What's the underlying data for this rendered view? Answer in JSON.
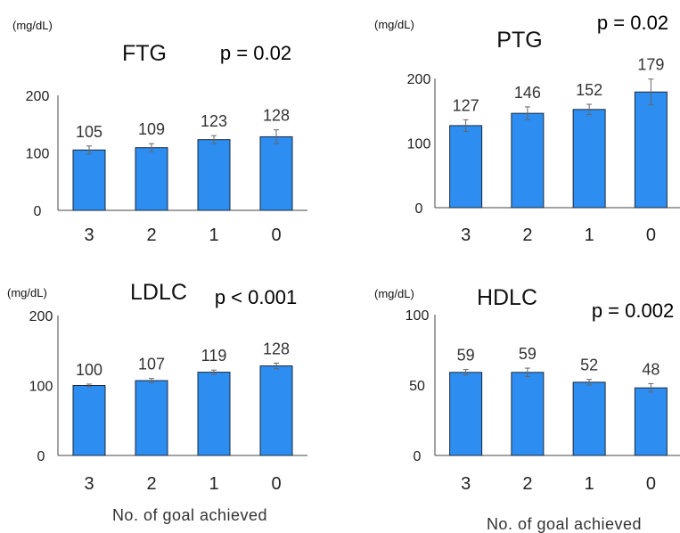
{
  "colors": {
    "bar": "#2e8df0",
    "axis": "#444444",
    "error": "#666666"
  },
  "chart_data": [
    {
      "type": "bar",
      "title": "FTG",
      "unit": "(mg/dL)",
      "p_value": "p = 0.02",
      "categories": [
        "3",
        "2",
        "1",
        "0"
      ],
      "values": [
        105,
        109,
        123,
        128
      ],
      "labels": [
        "105",
        "109",
        "123",
        "128"
      ],
      "errors": [
        7,
        7,
        7,
        12
      ],
      "ylim": [
        0,
        200
      ],
      "yticks": [
        0,
        100,
        200
      ],
      "xlabel": ""
    },
    {
      "type": "bar",
      "title": "PTG",
      "unit": "(mg/dL)",
      "p_value": "p = 0.02",
      "categories": [
        "3",
        "2",
        "1",
        "0"
      ],
      "values": [
        127,
        146,
        152,
        179
      ],
      "labels": [
        "127",
        "146",
        "152",
        "179"
      ],
      "errors": [
        9,
        10,
        8,
        20
      ],
      "ylim": [
        0,
        200
      ],
      "yticks": [
        0,
        100,
        200
      ],
      "xlabel": ""
    },
    {
      "type": "bar",
      "title": "LDLC",
      "unit": "(mg/dL)",
      "p_value": "p < 0.001",
      "categories": [
        "3",
        "2",
        "1",
        "0"
      ],
      "values": [
        100,
        107,
        119,
        128
      ],
      "labels": [
        "100",
        "107",
        "119",
        "128"
      ],
      "errors": [
        2,
        3,
        3,
        4
      ],
      "ylim": [
        0,
        200
      ],
      "yticks": [
        0,
        100,
        200
      ],
      "xlabel": "No. of goal achieved"
    },
    {
      "type": "bar",
      "title": "HDLC",
      "unit": "(mg/dL)",
      "p_value": "p = 0.002",
      "categories": [
        "3",
        "2",
        "1",
        "0"
      ],
      "values": [
        59,
        59,
        52,
        48
      ],
      "labels": [
        "59",
        "59",
        "52",
        "48"
      ],
      "errors": [
        2,
        3,
        2,
        3
      ],
      "ylim": [
        0,
        100
      ],
      "yticks": [
        0,
        50,
        100
      ],
      "xlabel": "No. of goal achieved"
    }
  ]
}
